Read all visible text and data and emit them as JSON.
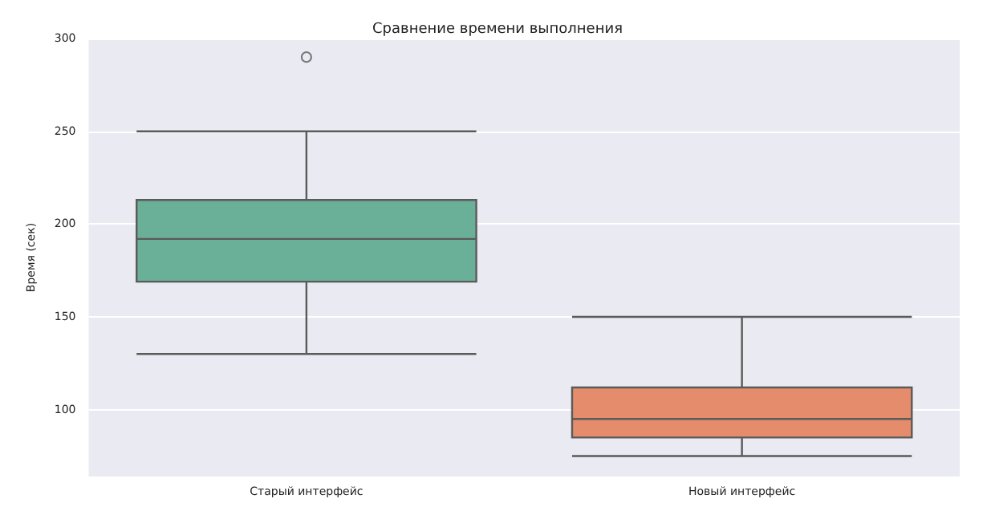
{
  "chart_data": {
    "type": "box",
    "title": "Сравнение времени выполнения",
    "ylabel": "Время (сек)",
    "categories": [
      "Старый интерфейс",
      "Новый интерфейс"
    ],
    "boxes": [
      {
        "low": 130,
        "q1": 169,
        "median": 192,
        "q3": 213,
        "high": 250,
        "outliers": [
          290
        ]
      },
      {
        "low": 75,
        "q1": 85,
        "median": 95,
        "q3": 112,
        "high": 150
      }
    ],
    "colors": [
      "#6aaf97",
      "#e48c6b"
    ],
    "ylim": [
      64,
      300
    ],
    "yticks": [
      100,
      150,
      200,
      250,
      300
    ],
    "grid": "y"
  }
}
